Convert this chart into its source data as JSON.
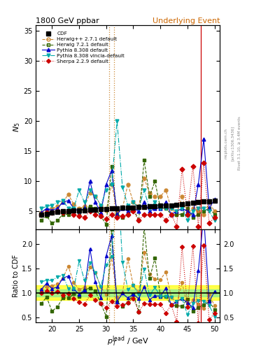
{
  "title_left": "1800 GeV ppbar",
  "title_right": "Underlying Event",
  "ylabel_main": "$N_5$",
  "ylabel_ratio": "Ratio to CDF",
  "xlabel": "$p_T^{\\mathrm{lead}}$ / GeV",
  "right_label1": "Rivet 3.1.10, ≥ 3.4M events",
  "right_label2": "[arXiv:1306.3436]",
  "right_label3": "mcplots.cern.ch",
  "xlim": [
    17,
    51
  ],
  "ylim_main": [
    2,
    36
  ],
  "ylim_ratio": [
    0.4,
    2.3
  ],
  "vlines": [
    30.5,
    31.5,
    47.5
  ],
  "vline_colors": [
    "#cc8833",
    "#cc8833",
    "#cc0000"
  ],
  "vline_styles": [
    "dotted",
    "dotted",
    "solid"
  ],
  "cdf_x": [
    18,
    19,
    20,
    21,
    22,
    23,
    24,
    25,
    26,
    27,
    28,
    29,
    30,
    31,
    32,
    33,
    34,
    35,
    36,
    37,
    38,
    39,
    40,
    41,
    42,
    43,
    44,
    45,
    46,
    47,
    48,
    49,
    50
  ],
  "cdf_y": [
    4.5,
    4.6,
    4.8,
    4.9,
    5.0,
    5.05,
    5.1,
    5.15,
    5.2,
    5.25,
    5.3,
    5.35,
    5.4,
    5.45,
    5.5,
    5.55,
    5.6,
    5.65,
    5.7,
    5.75,
    5.8,
    5.85,
    5.9,
    5.95,
    6.0,
    6.1,
    6.2,
    6.3,
    6.4,
    6.5,
    6.6,
    6.7,
    6.8
  ],
  "series": {
    "herwig_pp": {
      "label": "Herwig++ 2.7.1 default",
      "color": "#cc8833",
      "marker": "o",
      "markerfacecolor": "none",
      "linestyle": "--",
      "x": [
        18,
        19,
        20,
        21,
        22,
        23,
        24,
        25,
        26,
        27,
        28,
        29,
        30,
        31,
        32,
        33,
        34,
        35,
        36,
        37,
        38,
        39,
        40,
        41,
        42,
        43,
        44,
        45,
        46,
        47,
        48,
        49,
        50
      ],
      "y": [
        4.8,
        5.2,
        5.5,
        5.8,
        6.5,
        7.8,
        6.2,
        5.5,
        5.8,
        8.0,
        7.5,
        6.0,
        5.2,
        9.5,
        5.0,
        5.5,
        9.5,
        6.5,
        5.8,
        10.5,
        8.0,
        7.5,
        7.5,
        8.5,
        5.5,
        4.5,
        7.5,
        4.5,
        5.5,
        5.0,
        4.5,
        6.5,
        5.0
      ]
    },
    "herwig721": {
      "label": "Herwig 7.2.1 default",
      "color": "#336600",
      "marker": "s",
      "markerfacecolor": "none",
      "linestyle": "--",
      "x": [
        18,
        19,
        20,
        21,
        22,
        23,
        24,
        25,
        26,
        27,
        28,
        29,
        30,
        31,
        32,
        33,
        34,
        35,
        36,
        37,
        38,
        39,
        40,
        41,
        42,
        43,
        44,
        45,
        46,
        47,
        48,
        49,
        50
      ],
      "y": [
        3.5,
        4.2,
        3.0,
        3.5,
        4.5,
        4.5,
        5.0,
        4.8,
        5.5,
        5.8,
        5.5,
        4.2,
        2.8,
        12.5,
        4.5,
        4.0,
        4.5,
        5.5,
        3.5,
        13.5,
        7.5,
        10.0,
        5.5,
        5.5,
        4.5,
        4.5,
        4.5,
        5.5,
        4.0,
        4.5,
        5.0,
        5.5,
        4.5
      ]
    },
    "pythia8308": {
      "label": "Pythia 8.308 default",
      "color": "#0000cc",
      "marker": "^",
      "markerfacecolor": "#0000cc",
      "linestyle": "-",
      "x": [
        18,
        19,
        20,
        21,
        22,
        23,
        24,
        25,
        26,
        27,
        28,
        29,
        30,
        31,
        32,
        33,
        34,
        35,
        36,
        37,
        38,
        39,
        40,
        41,
        42,
        43,
        44,
        45,
        46,
        47,
        48,
        49,
        50
      ],
      "y": [
        4.8,
        5.5,
        5.2,
        5.5,
        6.5,
        6.8,
        5.5,
        5.0,
        5.5,
        10.0,
        6.5,
        4.8,
        9.5,
        11.8,
        4.5,
        5.5,
        5.0,
        5.5,
        5.0,
        6.5,
        5.0,
        5.5,
        5.5,
        6.5,
        4.5,
        5.0,
        5.5,
        5.0,
        4.5,
        9.5,
        17.0,
        5.5,
        7.0
      ]
    },
    "pythia_vincia": {
      "label": "Pythia 8.308 vincia-default",
      "color": "#00aaaa",
      "marker": "v",
      "markerfacecolor": "#00aaaa",
      "linestyle": "-.",
      "x": [
        18,
        19,
        20,
        21,
        22,
        23,
        24,
        25,
        26,
        27,
        28,
        29,
        30,
        31,
        32,
        33,
        34,
        35,
        36,
        37,
        38,
        39,
        40,
        41,
        42,
        43,
        44,
        45,
        46,
        47,
        48,
        49,
        50
      ],
      "y": [
        5.5,
        5.8,
        6.0,
        6.5,
        6.8,
        5.5,
        5.5,
        8.5,
        6.5,
        8.5,
        7.5,
        6.0,
        8.5,
        9.5,
        20.0,
        9.0,
        6.0,
        6.5,
        5.5,
        8.5,
        5.5,
        6.5,
        5.5,
        5.5,
        5.5,
        5.0,
        5.5,
        3.5,
        5.0,
        5.5,
        5.5,
        5.0,
        3.5
      ]
    },
    "sherpa": {
      "label": "Sherpa 2.2.9 default",
      "color": "#cc0000",
      "marker": "D",
      "markerfacecolor": "#cc0000",
      "linestyle": ":",
      "x": [
        18,
        19,
        20,
        21,
        22,
        23,
        24,
        25,
        26,
        27,
        28,
        29,
        30,
        31,
        32,
        33,
        34,
        35,
        36,
        37,
        38,
        39,
        40,
        41,
        42,
        43,
        44,
        45,
        46,
        47,
        48,
        49,
        50
      ],
      "y": [
        4.5,
        4.8,
        4.8,
        5.0,
        4.8,
        5.0,
        4.5,
        4.2,
        4.0,
        5.0,
        4.5,
        4.2,
        3.8,
        4.5,
        4.0,
        4.2,
        4.5,
        5.0,
        3.5,
        4.5,
        4.5,
        4.5,
        4.5,
        3.5,
        4.5,
        2.5,
        12.0,
        4.5,
        12.5,
        2.5,
        13.0,
        3.0,
        4.0
      ]
    }
  },
  "yellow_band_low": 0.85,
  "yellow_band_high": 1.15,
  "green_band_low": 0.93,
  "green_band_high": 1.07
}
